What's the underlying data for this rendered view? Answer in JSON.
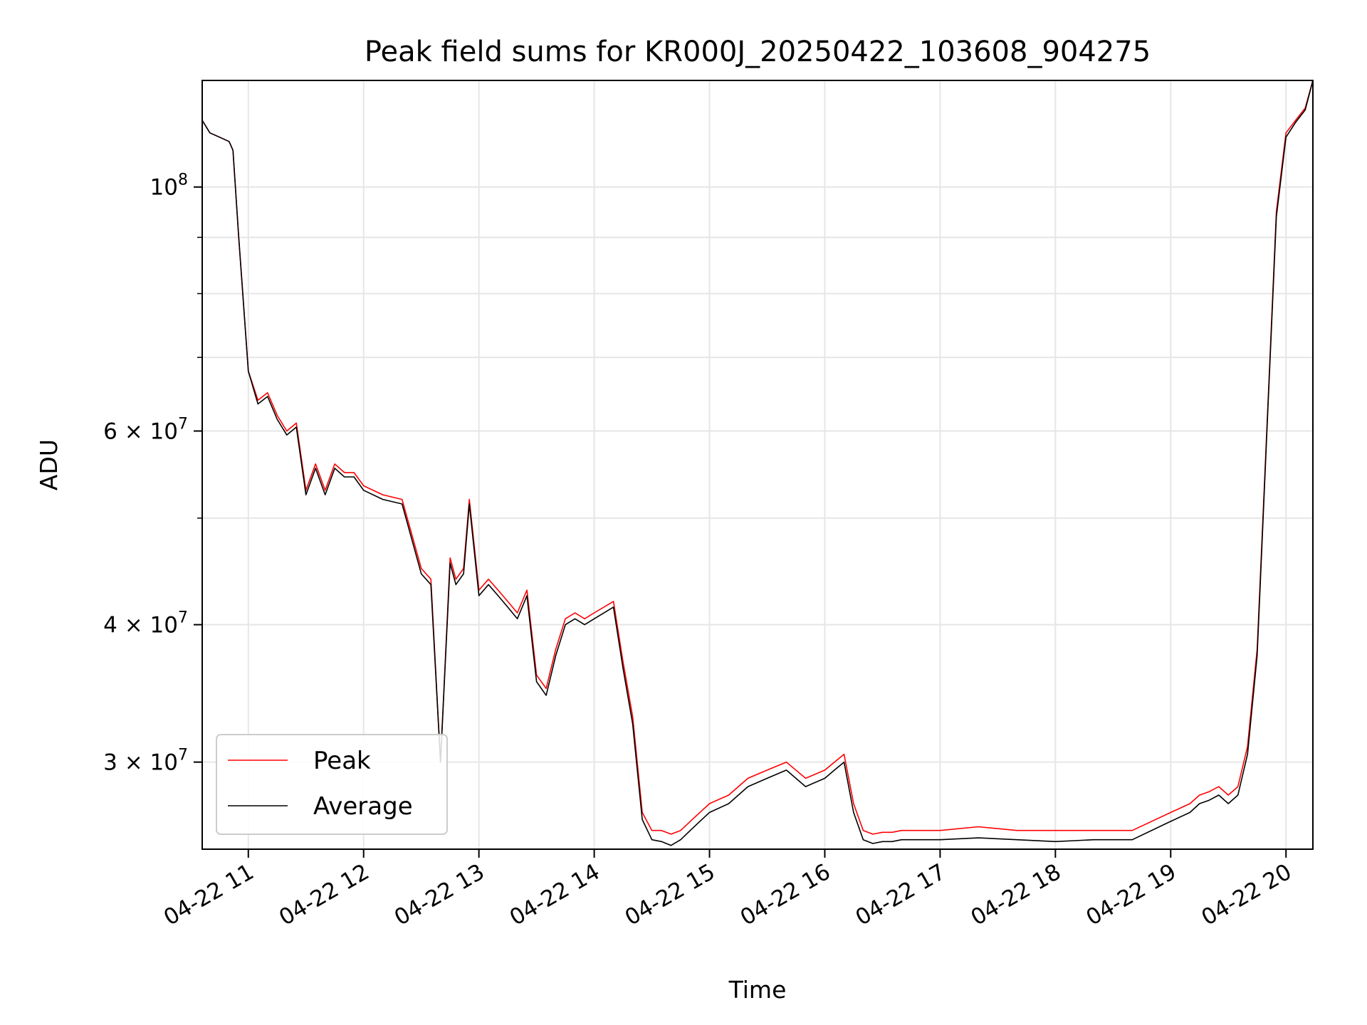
{
  "chart_data": {
    "type": "line",
    "title": "Peak field sums for KR000J_20250422_103608_904275",
    "xlabel": "Time",
    "ylabel": "ADU",
    "yscale": "log",
    "grid": true,
    "legend_position": "lower-left",
    "xlim": [
      "2025-04-22 10:36",
      "2025-04-22 20:14"
    ],
    "ylim": [
      25000000,
      125000000
    ],
    "x_ticks": [
      "04-22 11",
      "04-22 12",
      "04-22 13",
      "04-22 14",
      "04-22 15",
      "04-22 16",
      "04-22 17",
      "04-22 18",
      "04-22 19",
      "04-22 20"
    ],
    "y_ticks": [
      {
        "value": 100000000,
        "base": "10",
        "exp": "8"
      },
      {
        "value": 60000000,
        "base": "6 × 10",
        "exp": "7"
      },
      {
        "value": 40000000,
        "base": "4 × 10",
        "exp": "7"
      },
      {
        "value": 30000000,
        "base": "3 × 10",
        "exp": "7"
      }
    ],
    "x": [
      "10:36",
      "10:40",
      "10:45",
      "10:50",
      "10:52",
      "10:55",
      "11:00",
      "11:05",
      "11:10",
      "11:15",
      "11:20",
      "11:25",
      "11:30",
      "11:35",
      "11:40",
      "11:45",
      "11:50",
      "11:55",
      "12:00",
      "12:10",
      "12:20",
      "12:30",
      "12:35",
      "12:40",
      "12:45",
      "12:48",
      "12:52",
      "12:55",
      "13:00",
      "13:05",
      "13:10",
      "13:15",
      "13:20",
      "13:25",
      "13:30",
      "13:35",
      "13:40",
      "13:45",
      "13:50",
      "13:55",
      "14:00",
      "14:10",
      "14:15",
      "14:20",
      "14:25",
      "14:30",
      "14:35",
      "14:40",
      "14:45",
      "14:50",
      "14:55",
      "15:00",
      "15:10",
      "15:20",
      "15:30",
      "15:40",
      "15:50",
      "16:00",
      "16:05",
      "16:10",
      "16:15",
      "16:20",
      "16:25",
      "16:30",
      "16:35",
      "16:40",
      "16:50",
      "17:00",
      "17:20",
      "17:40",
      "18:00",
      "18:20",
      "18:40",
      "19:00",
      "19:10",
      "19:15",
      "19:20",
      "19:25",
      "19:30",
      "19:35",
      "19:40",
      "19:45",
      "19:50",
      "19:55",
      "20:00",
      "20:05",
      "20:10",
      "20:14"
    ],
    "series": [
      {
        "name": "Peak",
        "color": "#ff0000",
        "values": [
          115000000,
          112000000,
          111000000,
          110000000,
          108000000,
          90000000,
          68000000,
          64000000,
          65000000,
          62000000,
          60000000,
          61000000,
          53000000,
          56000000,
          53000000,
          56000000,
          55000000,
          55000000,
          53500000,
          52500000,
          52000000,
          45000000,
          44000000,
          30000000,
          46000000,
          44000000,
          45000000,
          52000000,
          43000000,
          44000000,
          43000000,
          42000000,
          41000000,
          43000000,
          36000000,
          35000000,
          38000000,
          40500000,
          41000000,
          40500000,
          41000000,
          42000000,
          37000000,
          33000000,
          27000000,
          26000000,
          26000000,
          25800000,
          26000000,
          26500000,
          27000000,
          27500000,
          28000000,
          29000000,
          29500000,
          30000000,
          29000000,
          29500000,
          30000000,
          30500000,
          27500000,
          26000000,
          25800000,
          25900000,
          25900000,
          26000000,
          26000000,
          26000000,
          26200000,
          26000000,
          26000000,
          26000000,
          26000000,
          27000000,
          27500000,
          28000000,
          28200000,
          28500000,
          28000000,
          28500000,
          31000000,
          38000000,
          60000000,
          95000000,
          112000000,
          115000000,
          118000000,
          125000000
        ]
      },
      {
        "name": "Average",
        "color": "#000000",
        "values": [
          115000000,
          112000000,
          111000000,
          110000000,
          108000000,
          90000000,
          68000000,
          63500000,
          64500000,
          61500000,
          59500000,
          60500000,
          52500000,
          55500000,
          52500000,
          55500000,
          54500000,
          54500000,
          53000000,
          52000000,
          51500000,
          44500000,
          43500000,
          30000000,
          45500000,
          43500000,
          44500000,
          51500000,
          42500000,
          43500000,
          42500000,
          41500000,
          40500000,
          42500000,
          35500000,
          34500000,
          37500000,
          40000000,
          40500000,
          40000000,
          40500000,
          41500000,
          36500000,
          32500000,
          26600000,
          25500000,
          25400000,
          25200000,
          25500000,
          26000000,
          26500000,
          27000000,
          27500000,
          28500000,
          29000000,
          29500000,
          28500000,
          29000000,
          29500000,
          30000000,
          27000000,
          25500000,
          25300000,
          25400000,
          25400000,
          25500000,
          25500000,
          25500000,
          25600000,
          25500000,
          25400000,
          25500000,
          25500000,
          26500000,
          27000000,
          27500000,
          27700000,
          28000000,
          27500000,
          28000000,
          30500000,
          37500000,
          59500000,
          94000000,
          111000000,
          114500000,
          117500000,
          125000000
        ]
      }
    ]
  }
}
